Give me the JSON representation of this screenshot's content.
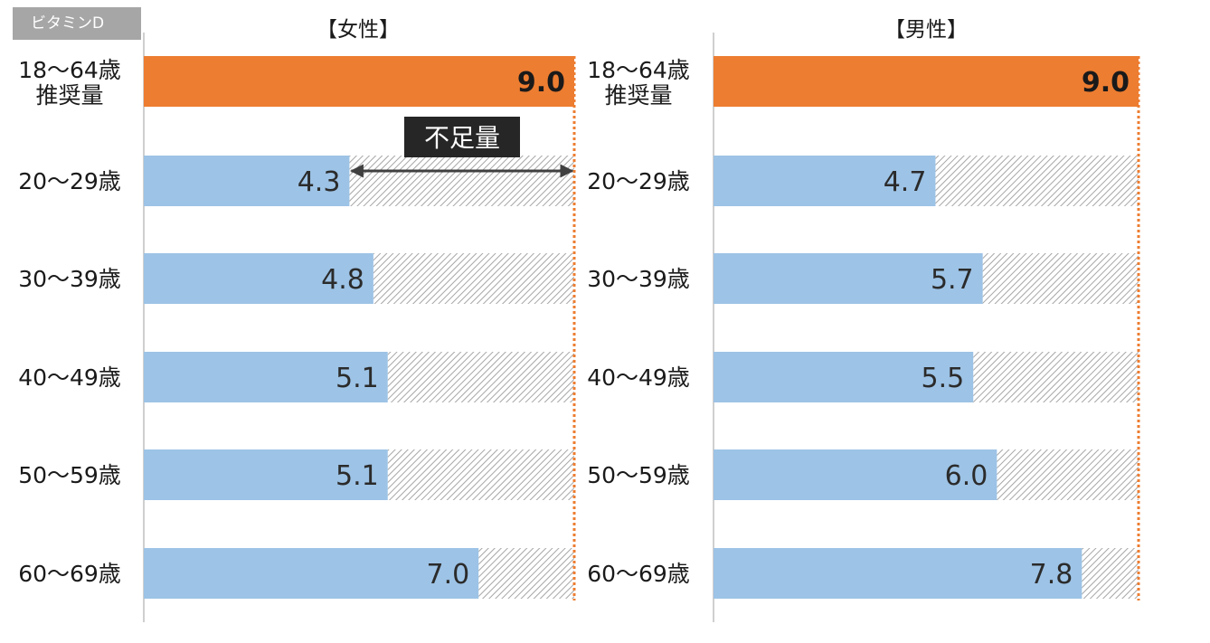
{
  "tag_label": "ビタミンD",
  "annotation_label": "不足量",
  "colors": {
    "reference": "#ed7d31",
    "intake": "#9dc3e6",
    "hatch": "#a6a6a6",
    "axis": "#bfbfbf",
    "annotation_bg": "#262626",
    "arrow": "#404040"
  },
  "chart_data": [
    {
      "type": "bar",
      "orientation": "horizontal",
      "title": "【女性】",
      "xlim": [
        0,
        9.0
      ],
      "categories": [
        {
          "lines": [
            "18～64歳",
            "推奨量"
          ]
        },
        {
          "lines": [
            "20～29歳"
          ]
        },
        {
          "lines": [
            "30～39歳"
          ]
        },
        {
          "lines": [
            "40～49歳"
          ]
        },
        {
          "lines": [
            "50～59歳"
          ]
        },
        {
          "lines": [
            "60～69歳"
          ]
        }
      ],
      "values": [
        9.0,
        4.3,
        4.8,
        5.1,
        5.1,
        7.0
      ],
      "labels": [
        "9.0",
        "4.3",
        "4.8",
        "5.1",
        "5.1",
        "7.0"
      ],
      "reference_value": 9.0,
      "shortfall_hatched": true,
      "grid": false
    },
    {
      "type": "bar",
      "orientation": "horizontal",
      "title": "【男性】",
      "xlim": [
        0,
        9.0
      ],
      "categories": [
        {
          "lines": [
            "18～64歳",
            "推奨量"
          ]
        },
        {
          "lines": [
            "20～29歳"
          ]
        },
        {
          "lines": [
            "30～39歳"
          ]
        },
        {
          "lines": [
            "40～49歳"
          ]
        },
        {
          "lines": [
            "50～59歳"
          ]
        },
        {
          "lines": [
            "60～69歳"
          ]
        }
      ],
      "values": [
        9.0,
        4.7,
        5.7,
        5.5,
        6.0,
        7.8
      ],
      "labels": [
        "9.0",
        "4.7",
        "5.7",
        "5.5",
        "6.0",
        "7.8"
      ],
      "reference_value": 9.0,
      "shortfall_hatched": true,
      "grid": false
    }
  ]
}
